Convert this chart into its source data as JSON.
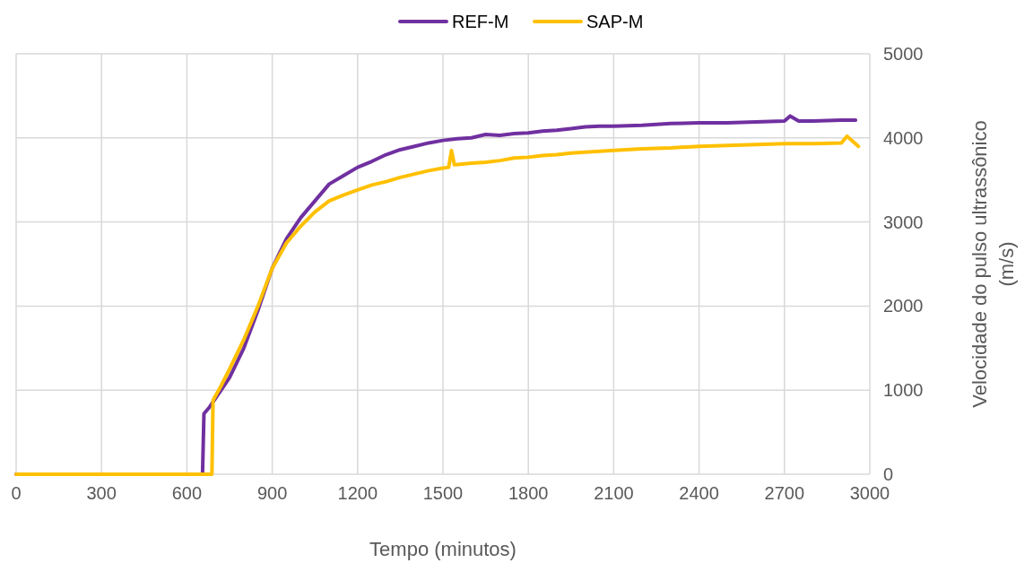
{
  "chart_data": {
    "type": "line",
    "xlabel": "Tempo (minutos)",
    "ylabel": "Velocidade do pulso ultrassônico (m/s)",
    "xlim": [
      0,
      3000
    ],
    "xticks": [
      0,
      300,
      600,
      900,
      1200,
      1500,
      1800,
      2100,
      2400,
      2700,
      3000
    ],
    "ylim": [
      0,
      5000
    ],
    "yticks": [
      0,
      1000,
      2000,
      3000,
      4000,
      5000
    ],
    "grid": true,
    "legend": "top",
    "marker": "none",
    "line_style": "solid",
    "series": [
      {
        "name": "REF-M",
        "color": "#7030a0",
        "x": [
          0,
          655,
          660,
          680,
          700,
          750,
          800,
          850,
          900,
          950,
          1000,
          1050,
          1100,
          1150,
          1200,
          1250,
          1300,
          1350,
          1400,
          1450,
          1500,
          1550,
          1600,
          1650,
          1700,
          1750,
          1800,
          1850,
          1900,
          1950,
          2000,
          2050,
          2100,
          2200,
          2300,
          2400,
          2500,
          2600,
          2700,
          2720,
          2750,
          2800,
          2900,
          2950
        ],
        "values": [
          0,
          0,
          720,
          800,
          900,
          1150,
          1500,
          1950,
          2450,
          2800,
          3050,
          3250,
          3450,
          3550,
          3650,
          3720,
          3800,
          3860,
          3900,
          3940,
          3970,
          3990,
          4000,
          4040,
          4030,
          4050,
          4060,
          4080,
          4090,
          4110,
          4130,
          4140,
          4140,
          4150,
          4170,
          4180,
          4180,
          4190,
          4200,
          4260,
          4200,
          4200,
          4210,
          4210
        ]
      },
      {
        "name": "SAP-M",
        "color": "#ffc000",
        "x": [
          0,
          688,
          692,
          720,
          750,
          800,
          850,
          900,
          950,
          1000,
          1050,
          1100,
          1150,
          1200,
          1250,
          1300,
          1350,
          1400,
          1450,
          1500,
          1520,
          1530,
          1540,
          1600,
          1650,
          1700,
          1750,
          1800,
          1850,
          1900,
          1950,
          2000,
          2100,
          2200,
          2300,
          2400,
          2500,
          2600,
          2700,
          2800,
          2900,
          2920,
          2960
        ],
        "values": [
          0,
          0,
          880,
          1050,
          1250,
          1600,
          2000,
          2450,
          2750,
          2950,
          3120,
          3250,
          3320,
          3380,
          3440,
          3480,
          3530,
          3570,
          3610,
          3640,
          3650,
          3850,
          3680,
          3700,
          3710,
          3730,
          3760,
          3770,
          3790,
          3800,
          3820,
          3830,
          3850,
          3870,
          3880,
          3900,
          3910,
          3920,
          3930,
          3930,
          3940,
          4020,
          3900
        ]
      }
    ]
  }
}
